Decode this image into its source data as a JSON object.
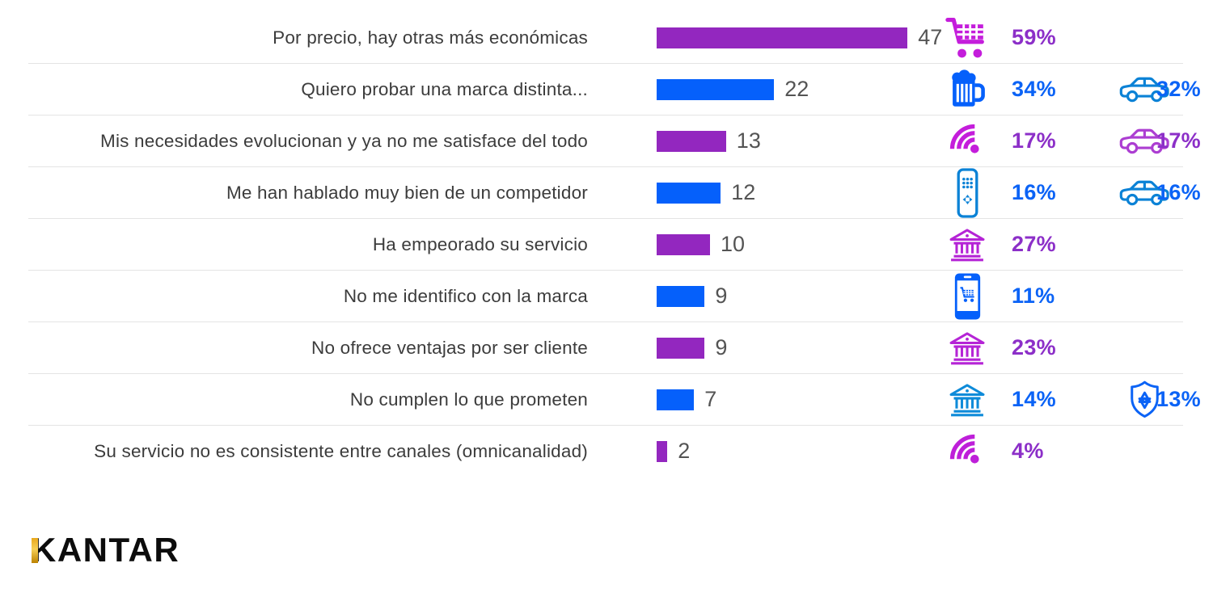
{
  "chart_data": {
    "type": "bar",
    "orientation": "horizontal",
    "title": "",
    "xlabel": "",
    "ylabel": "",
    "grid": "row-separators-only",
    "x_range": [
      0,
      47
    ],
    "categories": [
      "Por precio, hay otras más económicas",
      "Quiero probar una marca distinta...",
      "Mis necesidades evolucionan y ya no me satisface del todo",
      "Me han hablado muy bien de un competidor",
      "Ha empeorado su servicio",
      "No me identifico con la marca",
      "No ofrece ventajas por ser cliente",
      "No cumplen lo que prometen",
      "Su servicio no es consistente entre canales (omnicanalidad)"
    ],
    "values": [
      47,
      22,
      13,
      12,
      10,
      9,
      9,
      7,
      2
    ],
    "rows": [
      {
        "label": "Por precio, hay otras más económicas",
        "value": 47,
        "bar_color": "#9327BF",
        "metrics": [
          {
            "icon": "shopping-cart-icon",
            "percent": "59%",
            "icon_color": "#C41DDB",
            "text_color": "#8C2FC8"
          }
        ]
      },
      {
        "label": "Quiero probar una marca distinta...",
        "value": 22,
        "bar_color": "#0560FB",
        "metrics": [
          {
            "icon": "beer-mug-icon",
            "percent": "34%",
            "icon_color": "#0560FB",
            "text_color": "#0B63F6"
          },
          {
            "icon": "car-icon",
            "percent": "32%",
            "icon_color": "#0B82D6",
            "text_color": "#0B63F6"
          }
        ]
      },
      {
        "label": "Mis necesidades evolucionan y ya no me satisface del todo",
        "value": 13,
        "bar_color": "#9327BF",
        "metrics": [
          {
            "icon": "wifi-icon",
            "percent": "17%",
            "icon_color": "#C41DDB",
            "text_color": "#8C2FC8"
          },
          {
            "icon": "car-icon",
            "percent": "17%",
            "icon_color": "#AC3ED2",
            "text_color": "#8C2FC8"
          }
        ]
      },
      {
        "label": "Me han hablado muy bien de un competidor",
        "value": 12,
        "bar_color": "#0560FB",
        "metrics": [
          {
            "icon": "remote-control-icon",
            "percent": "16%",
            "icon_color": "#0B82D6",
            "text_color": "#0B63F6"
          },
          {
            "icon": "car-icon",
            "percent": "16%",
            "icon_color": "#0B82D6",
            "text_color": "#0B63F6"
          }
        ]
      },
      {
        "label": "Ha empeorado su servicio",
        "value": 10,
        "bar_color": "#9327BF",
        "metrics": [
          {
            "icon": "bank-icon",
            "percent": "27%",
            "icon_color": "#B524D6",
            "text_color": "#8C2FC8"
          }
        ]
      },
      {
        "label": "No me identifico con la marca",
        "value": 9,
        "bar_color": "#0560FB",
        "metrics": [
          {
            "icon": "phone-cart-icon",
            "percent": "11%",
            "icon_color": "#0560FB",
            "text_color": "#0B63F6"
          }
        ]
      },
      {
        "label": "No ofrece ventajas por ser cliente",
        "value": 9,
        "bar_color": "#9327BF",
        "metrics": [
          {
            "icon": "bank-icon",
            "percent": "23%",
            "icon_color": "#B524D6",
            "text_color": "#8C2FC8"
          }
        ]
      },
      {
        "label": "No cumplen lo que prometen",
        "value": 7,
        "bar_color": "#0560FB",
        "metrics": [
          {
            "icon": "bank-icon",
            "percent": "14%",
            "icon_color": "#0E8BD9",
            "text_color": "#0B63F6"
          },
          {
            "icon": "shield-gear-icon",
            "percent": "13%",
            "icon_color": "#0B63F6",
            "text_color": "#0B63F6"
          }
        ]
      },
      {
        "label": "Su servicio no es consistente entre canales (omnicanalidad)",
        "value": 2,
        "bar_color": "#9327BF",
        "metrics": [
          {
            "icon": "wifi-icon",
            "percent": "4%",
            "icon_color": "#BE1FD9",
            "text_color": "#8C2FC8"
          }
        ]
      }
    ]
  },
  "logo": {
    "text": "KANTAR",
    "text_color": "#0C0C0C",
    "accent_color": "#D99A00"
  },
  "styles": {
    "label_color": "#3C3C3C",
    "value_color": "#545454",
    "separator_color": "#E4E4E4",
    "background": "#FFFFFF"
  }
}
